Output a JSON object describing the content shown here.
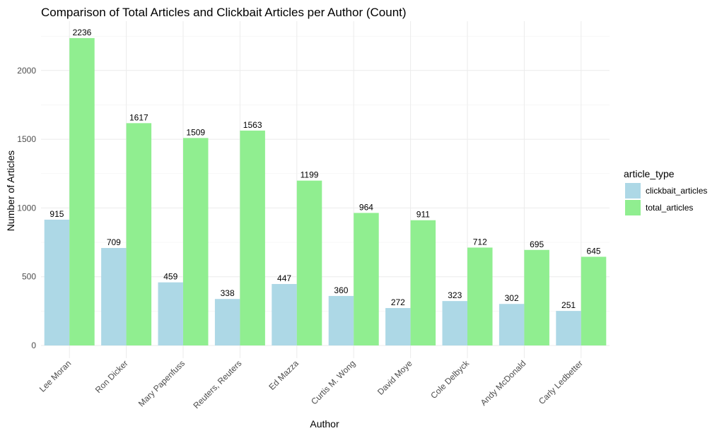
{
  "chart_data": {
    "type": "bar",
    "title": "Comparison of Total Articles and Clickbait Articles per Author (Count)",
    "xlabel": "Author",
    "ylabel": "Number of Articles",
    "categories": [
      "Lee Moran",
      "Ron Dicker",
      "Mary Papenfuss",
      "Reuters, Reuters",
      "Ed Mazza",
      "Curtis M. Wong",
      "David Moye",
      "Cole Delbyck",
      "Andy McDonald",
      "Carly Ledbetter"
    ],
    "series": [
      {
        "name": "clickbait_articles",
        "color": "#add8e6",
        "values": [
          915,
          709,
          459,
          338,
          447,
          360,
          272,
          323,
          302,
          251
        ]
      },
      {
        "name": "total_articles",
        "color": "#90ee90",
        "values": [
          2236,
          1617,
          1509,
          1563,
          1199,
          964,
          911,
          712,
          695,
          645
        ]
      }
    ],
    "ylim": [
      0,
      2350
    ],
    "yticks": [
      0,
      500,
      1000,
      1500,
      2000
    ],
    "grid": true,
    "legend": {
      "title": "article_type",
      "position": "right"
    }
  }
}
